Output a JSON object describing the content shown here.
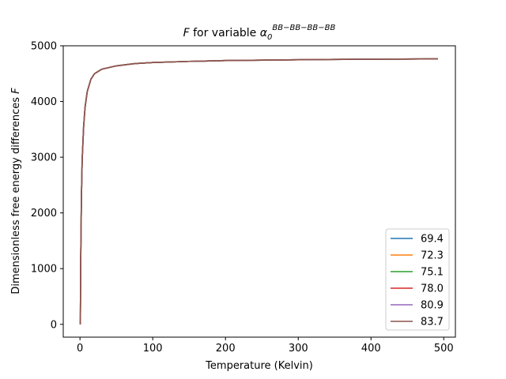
{
  "chart_data": {
    "type": "line",
    "title": {
      "prefix": "F",
      "middle": " for variable ",
      "symbol": "α",
      "subscript": "0",
      "superscript": "BB−BB−BB−BB"
    },
    "xlabel": "Temperature (Kelvin)",
    "ylabel_text": "Dimensionless free energy differences ",
    "ylabel_symbol": "F",
    "xlim": [
      -23,
      516
    ],
    "ylim": [
      -230,
      5000
    ],
    "xticks": [
      0,
      100,
      200,
      300,
      400,
      500
    ],
    "yticks": [
      0,
      1000,
      2000,
      3000,
      4000,
      5000
    ],
    "x_tick_labels": [
      "0",
      "100",
      "200",
      "300",
      "400",
      "500"
    ],
    "y_tick_labels": [
      "0",
      "1000",
      "2000",
      "3000",
      "4000",
      "5000"
    ],
    "grid": false,
    "legend_position": "lower-right",
    "series": [
      {
        "name": "69.4",
        "color": "#1f77b4",
        "points": [
          [
            0.5,
            0
          ],
          [
            1,
            1150
          ],
          [
            2,
            2300
          ],
          [
            3,
            2950
          ],
          [
            5,
            3550
          ],
          [
            7,
            3900
          ],
          [
            10,
            4180
          ],
          [
            15,
            4400
          ],
          [
            20,
            4500
          ],
          [
            30,
            4580
          ],
          [
            50,
            4640
          ],
          [
            75,
            4680
          ],
          [
            100,
            4700
          ],
          [
            150,
            4720
          ],
          [
            200,
            4735
          ],
          [
            300,
            4750
          ],
          [
            400,
            4760
          ],
          [
            492,
            4765
          ]
        ]
      },
      {
        "name": "72.3",
        "color": "#ff7f0e",
        "points": [
          [
            0.5,
            0
          ],
          [
            1,
            1150
          ],
          [
            2,
            2300
          ],
          [
            3,
            2950
          ],
          [
            5,
            3550
          ],
          [
            7,
            3900
          ],
          [
            10,
            4180
          ],
          [
            15,
            4400
          ],
          [
            20,
            4500
          ],
          [
            30,
            4580
          ],
          [
            50,
            4640
          ],
          [
            75,
            4680
          ],
          [
            100,
            4700
          ],
          [
            150,
            4720
          ],
          [
            200,
            4735
          ],
          [
            300,
            4750
          ],
          [
            400,
            4760
          ],
          [
            492,
            4765
          ]
        ]
      },
      {
        "name": "75.1",
        "color": "#2ca02c",
        "points": [
          [
            0.5,
            0
          ],
          [
            1,
            1150
          ],
          [
            2,
            2300
          ],
          [
            3,
            2950
          ],
          [
            5,
            3550
          ],
          [
            7,
            3900
          ],
          [
            10,
            4180
          ],
          [
            15,
            4400
          ],
          [
            20,
            4500
          ],
          [
            30,
            4580
          ],
          [
            50,
            4640
          ],
          [
            75,
            4680
          ],
          [
            100,
            4700
          ],
          [
            150,
            4720
          ],
          [
            200,
            4735
          ],
          [
            300,
            4750
          ],
          [
            400,
            4760
          ],
          [
            492,
            4765
          ]
        ]
      },
      {
        "name": "78.0",
        "color": "#d62728",
        "points": [
          [
            0.5,
            0
          ],
          [
            1,
            1150
          ],
          [
            2,
            2300
          ],
          [
            3,
            2950
          ],
          [
            5,
            3550
          ],
          [
            7,
            3900
          ],
          [
            10,
            4180
          ],
          [
            15,
            4400
          ],
          [
            20,
            4500
          ],
          [
            30,
            4580
          ],
          [
            50,
            4640
          ],
          [
            75,
            4680
          ],
          [
            100,
            4700
          ],
          [
            150,
            4720
          ],
          [
            200,
            4735
          ],
          [
            300,
            4750
          ],
          [
            400,
            4760
          ],
          [
            492,
            4765
          ]
        ]
      },
      {
        "name": "80.9",
        "color": "#9467bd",
        "points": [
          [
            0.5,
            0
          ],
          [
            1,
            1150
          ],
          [
            2,
            2300
          ],
          [
            3,
            2950
          ],
          [
            5,
            3550
          ],
          [
            7,
            3900
          ],
          [
            10,
            4180
          ],
          [
            15,
            4400
          ],
          [
            20,
            4500
          ],
          [
            30,
            4580
          ],
          [
            50,
            4640
          ],
          [
            75,
            4680
          ],
          [
            100,
            4700
          ],
          [
            150,
            4720
          ],
          [
            200,
            4735
          ],
          [
            300,
            4750
          ],
          [
            400,
            4760
          ],
          [
            492,
            4765
          ]
        ]
      },
      {
        "name": "83.7",
        "color": "#8c564b",
        "points": [
          [
            0.5,
            0
          ],
          [
            1,
            1150
          ],
          [
            2,
            2300
          ],
          [
            3,
            2950
          ],
          [
            5,
            3550
          ],
          [
            7,
            3900
          ],
          [
            10,
            4180
          ],
          [
            15,
            4400
          ],
          [
            20,
            4500
          ],
          [
            30,
            4580
          ],
          [
            50,
            4640
          ],
          [
            75,
            4680
          ],
          [
            100,
            4700
          ],
          [
            150,
            4720
          ],
          [
            200,
            4735
          ],
          [
            300,
            4750
          ],
          [
            400,
            4760
          ],
          [
            492,
            4765
          ]
        ]
      }
    ]
  }
}
